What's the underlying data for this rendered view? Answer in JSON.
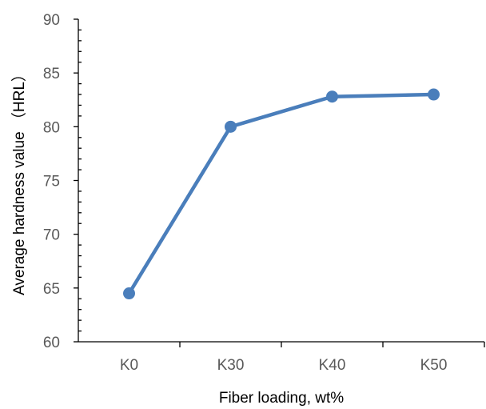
{
  "chart_data": {
    "type": "line",
    "title": "",
    "xlabel": "Fiber loading, wt%",
    "ylabel": "Average hardness value （HRL）",
    "categories": [
      "K0",
      "K30",
      "K40",
      "K50"
    ],
    "series": [
      {
        "values": [
          64.5,
          80.0,
          82.8,
          83.0
        ]
      }
    ],
    "ylim": [
      60,
      90
    ],
    "yticks": [
      60,
      65,
      70,
      75,
      80,
      85,
      90
    ],
    "grid": false,
    "legend": "none",
    "markers": true,
    "color": "#4a7ebb"
  }
}
